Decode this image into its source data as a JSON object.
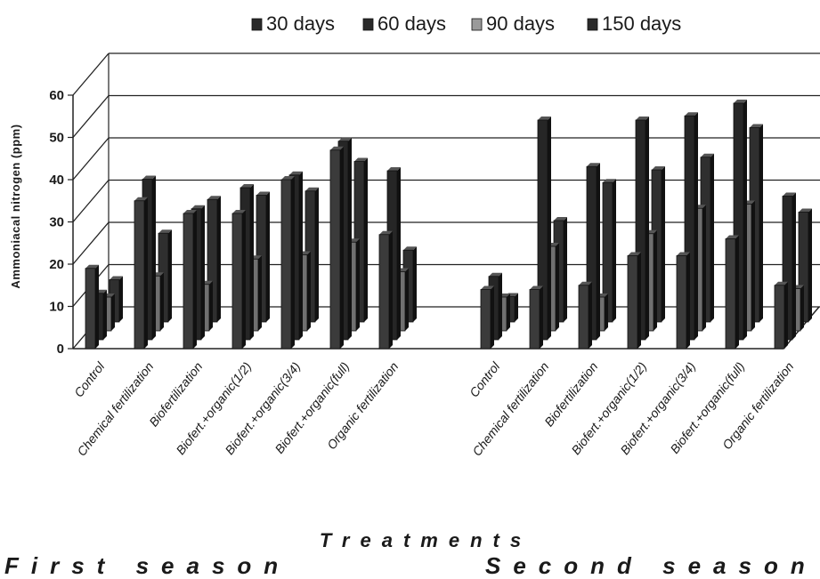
{
  "chart_data": {
    "type": "bar",
    "style": "3d-clustered",
    "ylabel": "Ammoniacal nitrogen (ppm)",
    "xlabel": "Treatments",
    "ylim": [
      0,
      60
    ],
    "yticks": [
      0,
      10,
      20,
      30,
      40,
      50,
      60
    ],
    "grid": true,
    "legend_position": "top",
    "groups": [
      {
        "name": "First season",
        "categories": [
          "Control",
          "Chemical fertilization",
          "Biofertilization",
          "Biofert.+organic(1/2)",
          "Biofert.+organic(3/4)",
          "Biofert.+organic(full)",
          "Organic fertilization"
        ],
        "series": [
          {
            "name": "30 days",
            "values": [
              19,
              35,
              32,
              32,
              40,
              47,
              27
            ]
          },
          {
            "name": "60 days",
            "values": [
              11,
              38,
              31,
              36,
              39,
              47,
              40
            ]
          },
          {
            "name": "90 days",
            "values": [
              8,
              13,
              11,
              17,
              18,
              21,
              14
            ]
          },
          {
            "name": "150 days",
            "values": [
              10,
              21,
              29,
              30,
              31,
              38,
              17
            ]
          }
        ]
      },
      {
        "name": "Second season",
        "categories": [
          "Control",
          "Chemical fertilization",
          "Biofertilization",
          "Biofert.+organic(1/2)",
          "Biofert.+organic(3/4)",
          "Biofert.+organic(full)",
          "Organic fertilization"
        ],
        "series": [
          {
            "name": "30 days",
            "values": [
              14,
              14,
              15,
              22,
              22,
              26,
              15
            ]
          },
          {
            "name": "60 days",
            "values": [
              15,
              52,
              41,
              52,
              53,
              56,
              34
            ]
          },
          {
            "name": "90 days",
            "values": [
              8,
              20,
              8,
              23,
              29,
              30,
              10
            ]
          },
          {
            "name": "150 days",
            "values": [
              6,
              24,
              33,
              36,
              39,
              46,
              26
            ]
          }
        ]
      }
    ],
    "colors": {
      "30 days": "#3a3a3a",
      "60 days": "#2b2b2b",
      "90 days": "#6a6a6a",
      "150 days": "#323232"
    }
  }
}
